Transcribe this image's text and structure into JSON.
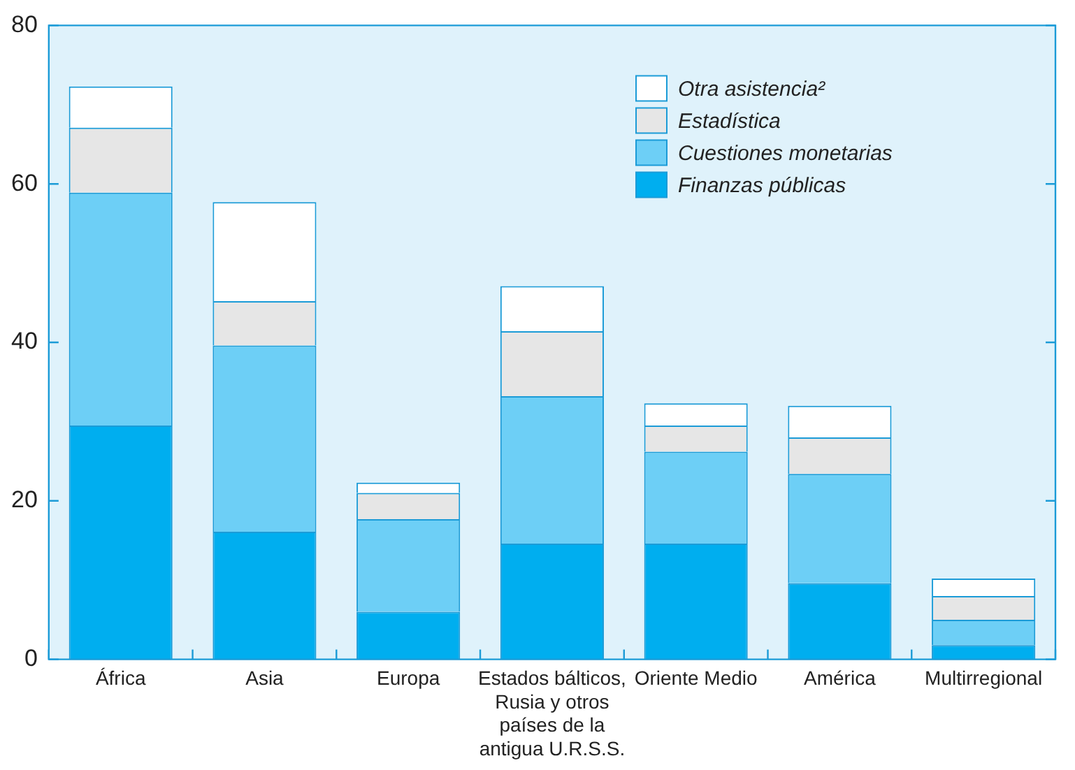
{
  "chart_data": {
    "type": "bar",
    "stacked": true,
    "categories": [
      "África",
      "Asia",
      "Europa",
      "Estados bálticos, Rusia y otros países de la antigua U.R.S.S.",
      "Oriente Medio",
      "América",
      "Multirregional"
    ],
    "series": [
      {
        "name": "Finanzas públicas",
        "color": "#00aeef",
        "values": [
          29.5,
          16.1,
          6,
          14.6,
          14.6,
          9.6,
          1.8
        ]
      },
      {
        "name": "Cuestiones monetarias",
        "color": "#6dcff6",
        "values": [
          29.4,
          23.5,
          11.7,
          18.6,
          11.6,
          13.8,
          3.2
        ]
      },
      {
        "name": "Estadística",
        "color": "#e6e6e6",
        "values": [
          8.2,
          5.6,
          3.3,
          8.2,
          3.3,
          4.6,
          3
        ]
      },
      {
        "name": "Otra asistencia²",
        "color": "#ffffff",
        "values": [
          5.2,
          12.5,
          1.3,
          5.7,
          2.8,
          4,
          2.2
        ]
      }
    ],
    "ylim": [
      0,
      80
    ],
    "yticks": [
      0,
      20,
      40,
      60,
      80
    ],
    "grid": false,
    "legend": "top right"
  }
}
